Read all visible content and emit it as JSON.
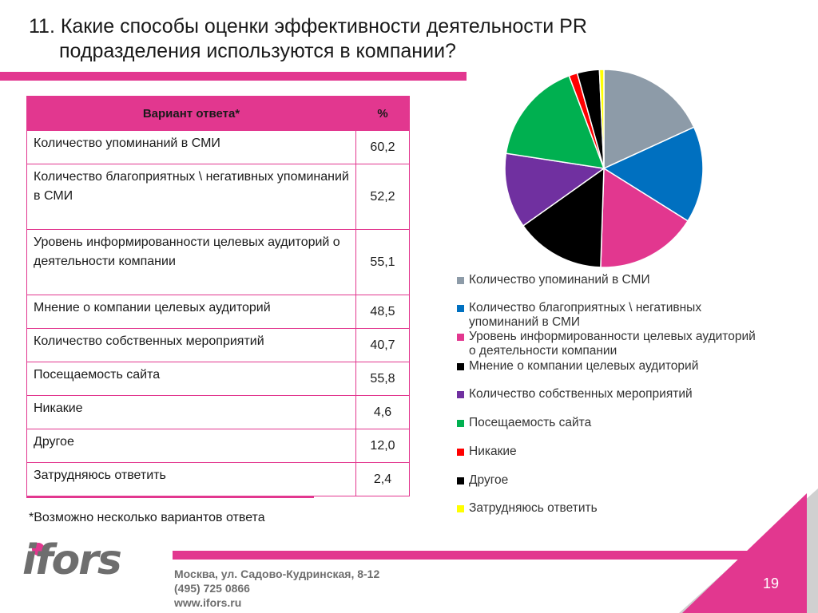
{
  "title": {
    "line1": "11. Какие способы оценки эффективности деятельности PR",
    "line2": "подразделения используются в компании?"
  },
  "table": {
    "header_answer": "Вариант ответа*",
    "header_pct": "%",
    "rows": [
      {
        "label": "Количество упоминаний в СМИ",
        "value": "60,2"
      },
      {
        "label": "Количество благоприятных \\ негативных упоминаний в СМИ",
        "value": "52,2"
      },
      {
        "label": "Уровень информированности целевых аудиторий о деятельности компании",
        "value": "55,1"
      },
      {
        "label": "Мнение о компании целевых аудиторий",
        "value": "48,5"
      },
      {
        "label": "Количество собственных мероприятий",
        "value": "40,7"
      },
      {
        "label": "Посещаемость сайта",
        "value": "55,8"
      },
      {
        "label": "Никакие",
        "value": "4,6"
      },
      {
        "label": "Другое",
        "value": "12,0"
      },
      {
        "label": "Затрудняюсь ответить",
        "value": "2,4"
      }
    ]
  },
  "footnote": "*Возможно несколько вариантов ответа",
  "chart_data": {
    "type": "pie",
    "categories": [
      "Количество упоминаний в СМИ",
      "Количество благоприятных \\ негативных упоминаний в СМИ",
      "Уровень информированности целевых аудиторий о деятельности компании",
      "Мнение о компании целевых аудиторий",
      "Количество собственных мероприятий",
      "Посещаемость сайта",
      "Никакие",
      "Другое",
      "Затрудняюсь ответить"
    ],
    "legend_labels": [
      [
        "Количество упоминаний в СМИ"
      ],
      [
        "Количество благоприятных \\ негативных",
        "упоминаний в СМИ"
      ],
      [
        "Уровень информированности целевых аудиторий",
        "о деятельности компании"
      ],
      [
        "Мнение о компании целевых аудиторий"
      ],
      [
        "Количество собственных мероприятий"
      ],
      [
        "Посещаемость сайта"
      ],
      [
        "Никакие"
      ],
      [
        "Другое"
      ],
      [
        "Затрудняюсь ответить"
      ]
    ],
    "values": [
      60.2,
      52.2,
      55.1,
      48.5,
      40.7,
      55.8,
      4.6,
      12.0,
      2.4
    ],
    "colors": [
      "#8d9ba8",
      "#0070c0",
      "#e2378f",
      "#000000",
      "#7030a0",
      "#00b050",
      "#ff0000",
      "#000000",
      "#ffff00"
    ],
    "legend_position": "bottom"
  },
  "contact": {
    "address": "Москва, ул. Садово-Кудринская, 8-12",
    "phone": "(495) 725 0866",
    "web": "www.ifors.ru"
  },
  "logo_text": "ifors",
  "page_number": "19",
  "colors": {
    "accent": "#e2378f",
    "logo_gray": "#6e6e6e"
  }
}
